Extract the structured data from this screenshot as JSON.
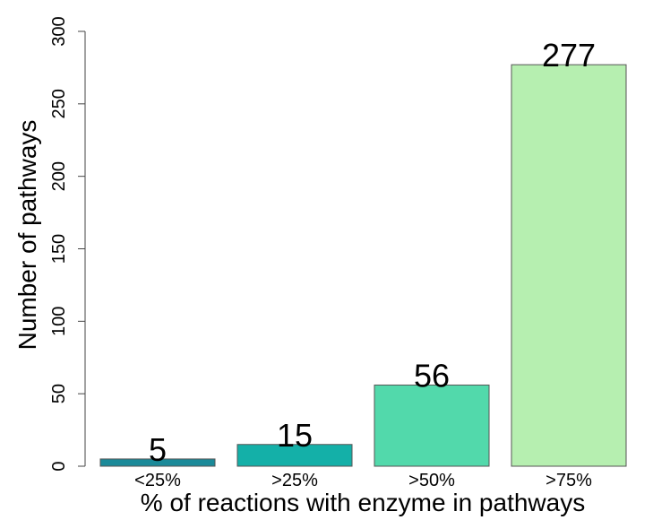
{
  "chart_data": {
    "type": "bar",
    "x_label": "% of reactions with enzyme in pathways",
    "y_label": "Number of pathways",
    "categories": [
      "<25%",
      ">25%",
      ">50%",
      ">75%"
    ],
    "values": [
      5,
      15,
      56,
      277
    ],
    "colors": [
      "#1b8a99",
      "#14b0a8",
      "#52d9ab",
      "#b6efb0"
    ],
    "ylim": [
      0,
      300
    ],
    "yticks": [
      0,
      50,
      100,
      150,
      200,
      250,
      300
    ]
  }
}
